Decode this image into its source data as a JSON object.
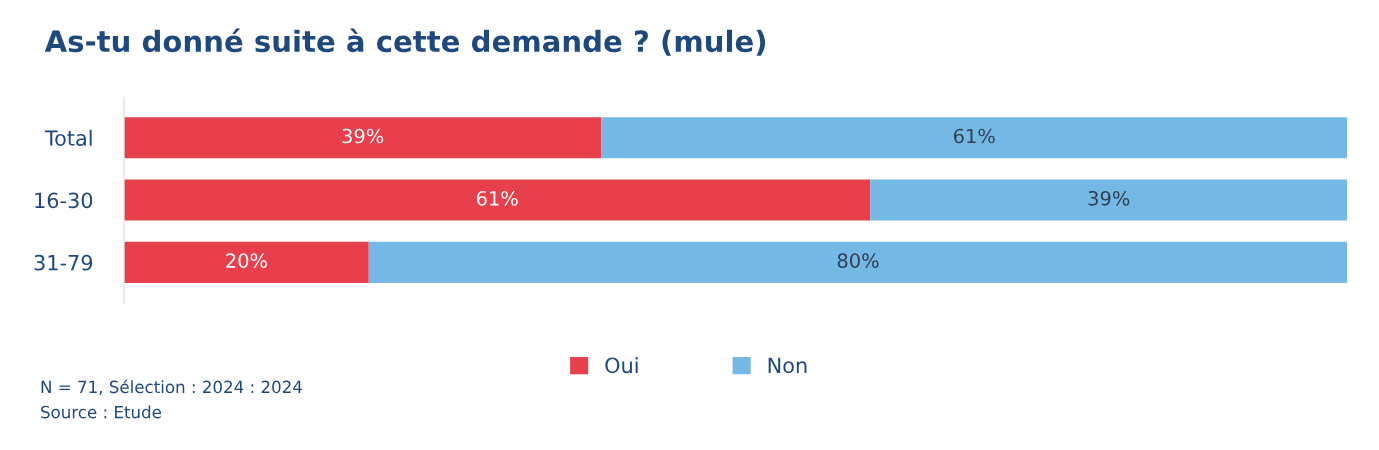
{
  "chart_data": {
    "type": "bar",
    "orientation": "horizontal",
    "stacked": true,
    "title": "As-tu donné suite à cette demande ? (mule)",
    "categories": [
      "Total",
      "16-30",
      "31-79"
    ],
    "series": [
      {
        "name": "Oui",
        "color": "#e83f4c",
        "values": [
          39,
          61,
          20
        ],
        "value_labels": [
          "39%",
          "61%",
          "20%"
        ]
      },
      {
        "name": "Non",
        "color": "#74b9e6",
        "values": [
          61,
          39,
          80
        ],
        "value_labels": [
          "61%",
          "39%",
          "80%"
        ]
      }
    ],
    "xlim": [
      0,
      100
    ],
    "tick_labels": "y",
    "grid": false,
    "legend": "bottom",
    "annotations": [
      "N = 71, Sélection : 2024 : 2024",
      "Source : Etude"
    ]
  }
}
